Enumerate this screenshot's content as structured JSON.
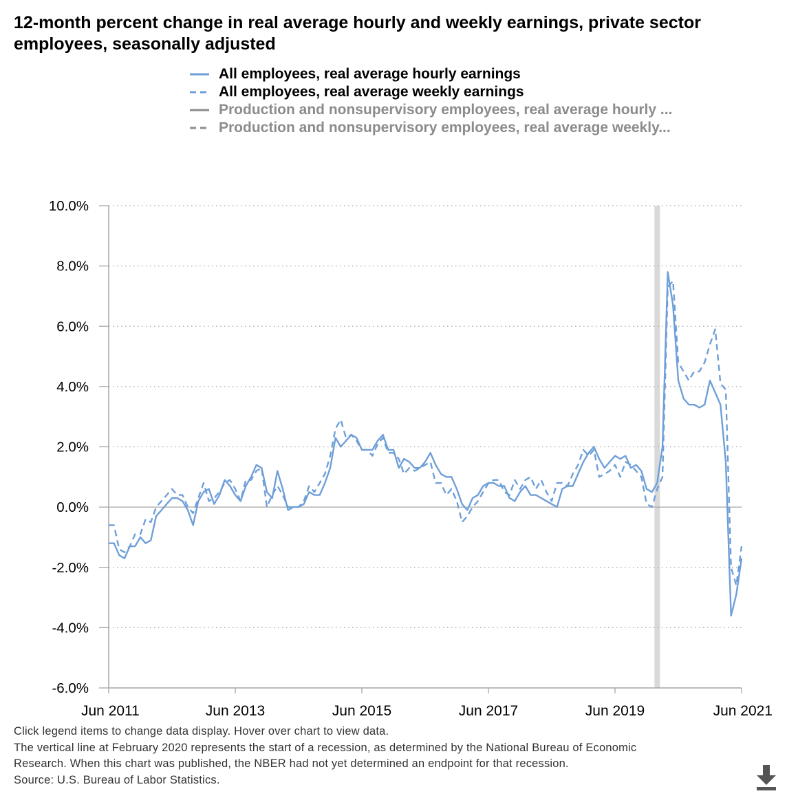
{
  "title": "12-month percent change in real average hourly and weekly earnings, private sector employees, seasonally adjusted",
  "legend": [
    {
      "label": "All employees, real average hourly earnings",
      "active": true,
      "dash": false,
      "color": "#6f9fd8"
    },
    {
      "label": "All employees, real average weekly earnings",
      "active": true,
      "dash": true,
      "color": "#6f9fd8"
    },
    {
      "label": "Production and nonsupervisory employees, real average hourly ...",
      "active": false,
      "dash": false,
      "color": "#8c8c8c"
    },
    {
      "label": "Production and nonsupervisory employees, real average weekly...",
      "active": false,
      "dash": true,
      "color": "#8c8c8c"
    }
  ],
  "footnotes": [
    "Click legend items to change data display. Hover over chart to view data.",
    "The vertical line at February 2020 represents the start of a recession, as determined by the National Bureau of Economic",
    "Research. When this chart was published, the NBER had not yet determined an endpoint for that recession.",
    "Source: U.S. Bureau of Labor Statistics."
  ],
  "download_icon": "download-icon",
  "colors": {
    "series": "#6f9fd8",
    "recession": "#d9d9d9",
    "grid": "#a6a6a6",
    "axis": "#a6a6a6"
  },
  "chart_data": {
    "type": "line",
    "x_start": "2011-06",
    "x_end": "2021-06",
    "x_ticks": [
      "Jun 2011",
      "Jun 2013",
      "Jun 2015",
      "Jun 2017",
      "Jun 2019",
      "Jun 2021"
    ],
    "y_ticks": [
      "10.0%",
      "8.0%",
      "6.0%",
      "4.0%",
      "2.0%",
      "0.0%",
      "-2.0%",
      "-4.0%",
      "-6.0%"
    ],
    "ylim": [
      -6,
      10
    ],
    "y_unit": "%",
    "grid": true,
    "legend_position": "top",
    "recession_start": "2020-02",
    "series": [
      {
        "name": "All employees, real average hourly earnings",
        "style": "solid",
        "points": [
          [
            "2011-06",
            -1.2
          ],
          [
            "2011-07",
            -1.2
          ],
          [
            "2011-08",
            -1.6
          ],
          [
            "2011-09",
            -1.7
          ],
          [
            "2011-10",
            -1.3
          ],
          [
            "2011-11",
            -1.3
          ],
          [
            "2011-12",
            -1.0
          ],
          [
            "2012-01",
            -1.2
          ],
          [
            "2012-02",
            -1.1
          ],
          [
            "2012-03",
            -0.3
          ],
          [
            "2012-04",
            -0.1
          ],
          [
            "2012-05",
            0.1
          ],
          [
            "2012-06",
            0.3
          ],
          [
            "2012-07",
            0.3
          ],
          [
            "2012-08",
            0.2
          ],
          [
            "2012-09",
            -0.1
          ],
          [
            "2012-10",
            -0.6
          ],
          [
            "2012-11",
            0.2
          ],
          [
            "2012-12",
            0.5
          ],
          [
            "2013-01",
            0.6
          ],
          [
            "2013-02",
            0.1
          ],
          [
            "2013-03",
            0.4
          ],
          [
            "2013-04",
            0.9
          ],
          [
            "2013-05",
            0.7
          ],
          [
            "2013-06",
            0.4
          ],
          [
            "2013-07",
            0.2
          ],
          [
            "2013-08",
            0.7
          ],
          [
            "2013-09",
            1.0
          ],
          [
            "2013-10",
            1.4
          ],
          [
            "2013-11",
            1.3
          ],
          [
            "2013-12",
            0.5
          ],
          [
            "2014-01",
            0.3
          ],
          [
            "2014-02",
            1.2
          ],
          [
            "2014-03",
            0.6
          ],
          [
            "2014-04",
            -0.1
          ],
          [
            "2014-05",
            0.0
          ],
          [
            "2014-06",
            0.0
          ],
          [
            "2014-07",
            0.1
          ],
          [
            "2014-08",
            0.5
          ],
          [
            "2014-09",
            0.4
          ],
          [
            "2014-10",
            0.4
          ],
          [
            "2014-11",
            0.8
          ],
          [
            "2014-12",
            1.3
          ],
          [
            "2015-01",
            2.3
          ],
          [
            "2015-02",
            2.0
          ],
          [
            "2015-03",
            2.2
          ],
          [
            "2015-04",
            2.4
          ],
          [
            "2015-05",
            2.3
          ],
          [
            "2015-06",
            1.9
          ],
          [
            "2015-07",
            1.9
          ],
          [
            "2015-08",
            1.9
          ],
          [
            "2015-09",
            2.2
          ],
          [
            "2015-10",
            2.4
          ],
          [
            "2015-11",
            1.9
          ],
          [
            "2015-12",
            1.9
          ],
          [
            "2016-01",
            1.3
          ],
          [
            "2016-02",
            1.6
          ],
          [
            "2016-03",
            1.5
          ],
          [
            "2016-04",
            1.3
          ],
          [
            "2016-05",
            1.3
          ],
          [
            "2016-06",
            1.5
          ],
          [
            "2016-07",
            1.8
          ],
          [
            "2016-08",
            1.4
          ],
          [
            "2016-09",
            1.1
          ],
          [
            "2016-10",
            1.0
          ],
          [
            "2016-11",
            1.0
          ],
          [
            "2016-12",
            0.6
          ],
          [
            "2017-01",
            0.1
          ],
          [
            "2017-02",
            -0.1
          ],
          [
            "2017-03",
            0.3
          ],
          [
            "2017-04",
            0.4
          ],
          [
            "2017-05",
            0.7
          ],
          [
            "2017-06",
            0.8
          ],
          [
            "2017-07",
            0.8
          ],
          [
            "2017-08",
            0.7
          ],
          [
            "2017-09",
            0.7
          ],
          [
            "2017-10",
            0.3
          ],
          [
            "2017-11",
            0.2
          ],
          [
            "2017-12",
            0.5
          ],
          [
            "2018-01",
            0.7
          ],
          [
            "2018-02",
            0.4
          ],
          [
            "2018-03",
            0.4
          ],
          [
            "2018-04",
            0.3
          ],
          [
            "2018-05",
            0.2
          ],
          [
            "2018-06",
            0.1
          ],
          [
            "2018-07",
            0.0
          ],
          [
            "2018-08",
            0.6
          ],
          [
            "2018-09",
            0.7
          ],
          [
            "2018-10",
            0.7
          ],
          [
            "2018-11",
            1.1
          ],
          [
            "2018-12",
            1.5
          ],
          [
            "2019-01",
            1.8
          ],
          [
            "2019-02",
            2.0
          ],
          [
            "2019-03",
            1.6
          ],
          [
            "2019-04",
            1.3
          ],
          [
            "2019-05",
            1.5
          ],
          [
            "2019-06",
            1.7
          ],
          [
            "2019-07",
            1.6
          ],
          [
            "2019-08",
            1.7
          ],
          [
            "2019-09",
            1.3
          ],
          [
            "2019-10",
            1.4
          ],
          [
            "2019-11",
            1.2
          ],
          [
            "2019-12",
            0.6
          ],
          [
            "2020-01",
            0.5
          ],
          [
            "2020-02",
            0.8
          ],
          [
            "2020-03",
            2.0
          ],
          [
            "2020-04",
            7.8
          ],
          [
            "2020-05",
            6.7
          ],
          [
            "2020-06",
            4.2
          ],
          [
            "2020-07",
            3.6
          ],
          [
            "2020-08",
            3.4
          ],
          [
            "2020-09",
            3.4
          ],
          [
            "2020-10",
            3.3
          ],
          [
            "2020-11",
            3.4
          ],
          [
            "2020-12",
            4.2
          ],
          [
            "2021-01",
            3.8
          ],
          [
            "2021-02",
            3.4
          ],
          [
            "2021-03",
            1.5
          ],
          [
            "2021-04",
            -3.6
          ],
          [
            "2021-05",
            -2.9
          ],
          [
            "2021-06",
            -1.7
          ]
        ]
      },
      {
        "name": "All employees, real average weekly earnings",
        "style": "dashed",
        "points": [
          [
            "2011-06",
            -0.6
          ],
          [
            "2011-07",
            -0.6
          ],
          [
            "2011-08",
            -1.4
          ],
          [
            "2011-09",
            -1.5
          ],
          [
            "2011-10",
            -1.3
          ],
          [
            "2011-11",
            -0.9
          ],
          [
            "2011-12",
            -0.9
          ],
          [
            "2012-01",
            -0.4
          ],
          [
            "2012-02",
            -0.5
          ],
          [
            "2012-03",
            0.0
          ],
          [
            "2012-04",
            0.2
          ],
          [
            "2012-05",
            0.4
          ],
          [
            "2012-06",
            0.6
          ],
          [
            "2012-07",
            0.4
          ],
          [
            "2012-08",
            0.4
          ],
          [
            "2012-09",
            0.0
          ],
          [
            "2012-10",
            -0.2
          ],
          [
            "2012-11",
            0.3
          ],
          [
            "2012-12",
            0.8
          ],
          [
            "2013-01",
            0.2
          ],
          [
            "2013-02",
            0.3
          ],
          [
            "2013-03",
            0.5
          ],
          [
            "2013-04",
            0.8
          ],
          [
            "2013-05",
            0.9
          ],
          [
            "2013-06",
            0.6
          ],
          [
            "2013-07",
            0.2
          ],
          [
            "2013-08",
            0.9
          ],
          [
            "2013-09",
            0.9
          ],
          [
            "2013-10",
            1.2
          ],
          [
            "2013-11",
            1.3
          ],
          [
            "2013-12",
            0.0
          ],
          [
            "2014-01",
            0.4
          ],
          [
            "2014-02",
            0.7
          ],
          [
            "2014-03",
            0.4
          ],
          [
            "2014-04",
            0.0
          ],
          [
            "2014-05",
            0.0
          ],
          [
            "2014-06",
            0.0
          ],
          [
            "2014-07",
            0.2
          ],
          [
            "2014-08",
            0.7
          ],
          [
            "2014-09",
            0.5
          ],
          [
            "2014-10",
            0.8
          ],
          [
            "2014-11",
            1.1
          ],
          [
            "2014-12",
            1.7
          ],
          [
            "2015-01",
            2.6
          ],
          [
            "2015-02",
            2.9
          ],
          [
            "2015-03",
            2.3
          ],
          [
            "2015-04",
            2.4
          ],
          [
            "2015-05",
            2.2
          ],
          [
            "2015-06",
            1.9
          ],
          [
            "2015-07",
            1.9
          ],
          [
            "2015-08",
            1.7
          ],
          [
            "2015-09",
            2.1
          ],
          [
            "2015-10",
            2.3
          ],
          [
            "2015-11",
            1.8
          ],
          [
            "2015-12",
            1.8
          ],
          [
            "2016-01",
            1.6
          ],
          [
            "2016-02",
            1.1
          ],
          [
            "2016-03",
            1.3
          ],
          [
            "2016-04",
            1.2
          ],
          [
            "2016-05",
            1.3
          ],
          [
            "2016-06",
            1.4
          ],
          [
            "2016-07",
            1.5
          ],
          [
            "2016-08",
            0.8
          ],
          [
            "2016-09",
            0.8
          ],
          [
            "2016-10",
            0.4
          ],
          [
            "2016-11",
            0.6
          ],
          [
            "2016-12",
            0.2
          ],
          [
            "2017-01",
            -0.5
          ],
          [
            "2017-02",
            -0.3
          ],
          [
            "2017-03",
            0.0
          ],
          [
            "2017-04",
            0.2
          ],
          [
            "2017-05",
            0.5
          ],
          [
            "2017-06",
            0.8
          ],
          [
            "2017-07",
            0.9
          ],
          [
            "2017-08",
            0.9
          ],
          [
            "2017-09",
            0.5
          ],
          [
            "2017-10",
            0.4
          ],
          [
            "2017-11",
            0.9
          ],
          [
            "2017-12",
            0.6
          ],
          [
            "2018-01",
            0.9
          ],
          [
            "2018-02",
            1.0
          ],
          [
            "2018-03",
            0.6
          ],
          [
            "2018-04",
            0.9
          ],
          [
            "2018-05",
            0.5
          ],
          [
            "2018-06",
            0.2
          ],
          [
            "2018-07",
            0.8
          ],
          [
            "2018-08",
            0.8
          ],
          [
            "2018-09",
            0.7
          ],
          [
            "2018-10",
            1.1
          ],
          [
            "2018-11",
            1.4
          ],
          [
            "2018-12",
            1.9
          ],
          [
            "2019-01",
            1.7
          ],
          [
            "2019-02",
            1.9
          ],
          [
            "2019-03",
            1.0
          ],
          [
            "2019-04",
            1.1
          ],
          [
            "2019-05",
            1.2
          ],
          [
            "2019-06",
            1.4
          ],
          [
            "2019-07",
            1.0
          ],
          [
            "2019-08",
            1.5
          ],
          [
            "2019-09",
            1.4
          ],
          [
            "2019-10",
            1.2
          ],
          [
            "2019-11",
            1.0
          ],
          [
            "2019-12",
            0.1
          ],
          [
            "2020-01",
            0.0
          ],
          [
            "2020-02",
            0.6
          ],
          [
            "2020-03",
            1.0
          ],
          [
            "2020-04",
            7.3
          ],
          [
            "2020-05",
            7.5
          ],
          [
            "2020-06",
            4.8
          ],
          [
            "2020-07",
            4.5
          ],
          [
            "2020-08",
            4.2
          ],
          [
            "2020-09",
            4.5
          ],
          [
            "2020-10",
            4.5
          ],
          [
            "2020-11",
            4.8
          ],
          [
            "2020-12",
            5.4
          ],
          [
            "2021-01",
            5.9
          ],
          [
            "2021-02",
            4.1
          ],
          [
            "2021-03",
            3.9
          ],
          [
            "2021-04",
            -2.0
          ],
          [
            "2021-05",
            -2.6
          ],
          [
            "2021-06",
            -1.3
          ]
        ]
      }
    ]
  }
}
